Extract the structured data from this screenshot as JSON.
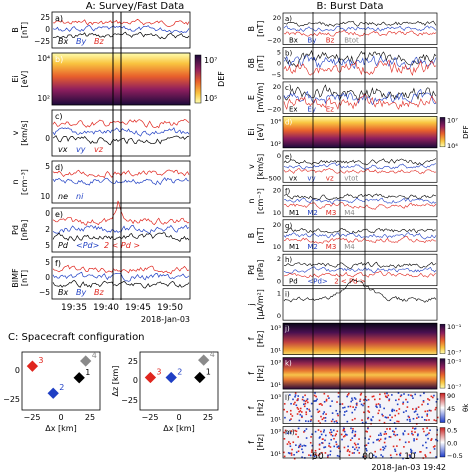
{
  "colors": {
    "black": "#000000",
    "blue": "#1f3fc4",
    "red": "#e0261e",
    "gray": "#8a8a8a",
    "purple": "#6a3d9a",
    "orange": "#f0a020"
  },
  "left": {
    "title": "A: Survey/Fast Data",
    "panels": [
      {
        "id": "a",
        "label": "a)",
        "ylabel": "B\n[nT]",
        "ticks": [
          "25",
          "0",
          "−25"
        ],
        "legend": [
          "Bx",
          "By",
          "Bz"
        ]
      },
      {
        "id": "b",
        "label": "b)",
        "ylabel": "Ei\n[eV]",
        "ticks": [
          "10⁴",
          "10²"
        ],
        "colorbar": {
          "ticks": [
            "10⁷",
            "10⁵"
          ],
          "label": "DEF"
        }
      },
      {
        "id": "c",
        "label": "c)",
        "ylabel": "v\n[km/s]",
        "ticks": [
          "0"
        ],
        "legend": [
          "vx",
          "vy",
          "vz"
        ]
      },
      {
        "id": "d",
        "label": "d)",
        "ylabel": "n\n[cm⁻³]",
        "ticks": [
          "5",
          "10"
        ],
        "legend": [
          "ne",
          "ni"
        ]
      },
      {
        "id": "e",
        "label": "e)",
        "ylabel": "Pd\n[nPa]",
        "ticks": [
          "0",
          "2",
          "5"
        ],
        "legend": [
          "Pd",
          "<Pd>",
          "2 < Pd >"
        ]
      },
      {
        "id": "f",
        "label": "f)",
        "ylabel": "BIMF\n[nT]",
        "ticks": [
          "5",
          "0",
          "−5"
        ],
        "legend": [
          "Bx",
          "By",
          "Bz"
        ]
      }
    ],
    "x_ticks": [
      "19:35",
      "19:40",
      "19:45",
      "19:50"
    ],
    "date": "2018-Jan-03"
  },
  "right": {
    "title": "B: Burst Data",
    "panels": [
      {
        "id": "a",
        "label": "a)",
        "ylabel": "B\n[nT]",
        "ticks": [
          "20",
          "0",
          "−20"
        ],
        "legend": [
          "Bx",
          "By",
          "Bz",
          "Btot"
        ]
      },
      {
        "id": "b",
        "label": "b)",
        "ylabel": "δB\n[nT]",
        "ticks": [
          "5",
          "0",
          "−5"
        ]
      },
      {
        "id": "c",
        "label": "c)",
        "ylabel": "E\n[mV/m]",
        "ticks": [
          "20",
          "0",
          "−20"
        ],
        "legend": [
          "Ex",
          "Ey",
          "Ez"
        ]
      },
      {
        "id": "d",
        "label": "d)",
        "ylabel": "Ei\n[eV]",
        "ticks": [
          "10⁴",
          "10²"
        ],
        "colorbar": {
          "ticks": [
            "10⁷",
            "10⁴"
          ],
          "label": "DFF"
        }
      },
      {
        "id": "e",
        "label": "e)",
        "ylabel": "v\n[km/s]",
        "ticks": [
          "0",
          "−500"
        ],
        "legend": [
          "vx",
          "vy",
          "vz",
          "vtot"
        ]
      },
      {
        "id": "f",
        "label": "f)",
        "ylabel": "n\n[cm⁻³]",
        "ticks": [
          "20",
          "10"
        ],
        "legend": [
          "M1",
          "M2",
          "M3",
          "M4"
        ]
      },
      {
        "id": "g",
        "label": "g)",
        "ylabel": "B\n[nT]",
        "ticks": [
          "20",
          "10"
        ],
        "legend": [
          "M1",
          "M2",
          "M3",
          "M4"
        ]
      },
      {
        "id": "h",
        "label": "h)",
        "ylabel": "Pd\n[nPa]",
        "ticks": [
          "2",
          "0"
        ],
        "legend": [
          "Pd",
          "<Pd>",
          "2 < Pd >"
        ]
      },
      {
        "id": "i",
        "label": "i)",
        "ylabel": "j\n[μA/m²]",
        "ticks": [
          "1",
          "0"
        ]
      },
      {
        "id": "j",
        "label": "j)",
        "ylabel": "f\n[Hz]",
        "ticks": [
          "10³",
          "10¹"
        ],
        "colorbar": {
          "ticks": [
            "10⁻¹",
            "10⁻⁷"
          ],
          "label": ""
        }
      },
      {
        "id": "k",
        "label": "k)",
        "ylabel": "f\n[Hz]",
        "ticks": [
          "10³",
          "10¹"
        ],
        "colorbar": {
          "ticks": [
            "10⁻¹",
            "10⁻⁷"
          ],
          "label": ""
        }
      },
      {
        "id": "l",
        "label": "l)",
        "ylabel": "f\n[Hz]",
        "ticks": [
          "10³",
          "10¹"
        ],
        "colorbar": {
          "ticks": [
            "90",
            "45",
            "0"
          ],
          "label": "θk"
        }
      },
      {
        "id": "m",
        "label": "m)",
        "ylabel": "f\n[Hz]",
        "ticks": [
          "10³",
          "10¹"
        ],
        "colorbar": {
          "ticks": [
            "0.5",
            "0.0",
            "−0.5"
          ],
          "label": ""
        }
      }
    ],
    "x_ticks": [
      "50",
      "00",
      "10"
    ],
    "date": "2018-Jan-03 19:42"
  },
  "config": {
    "title": "C: Spacecraft configuration",
    "left_plot": {
      "xlabel": "Δx [km]",
      "ylabel": "",
      "xticks": [
        "−25",
        "0",
        "25"
      ],
      "yticks": [
        "0",
        "−25"
      ]
    },
    "right_plot": {
      "xlabel": "Δx [km]",
      "ylabel": "Δz [km]",
      "xticks": [
        "−25",
        "0",
        "25"
      ],
      "yticks": [
        "25",
        "0",
        "−25"
      ]
    }
  },
  "chart_data": [
    {
      "type": "scatter",
      "title": "C: Spacecraft configuration",
      "xlabel": "Δx [km]",
      "ylabel": "",
      "xlim": [
        -30,
        30
      ],
      "ylim": [
        -30,
        15
      ],
      "series": [
        {
          "name": "1",
          "x": [
            14
          ],
          "y": [
            -5
          ],
          "color": "#000000"
        },
        {
          "name": "2",
          "x": [
            -6
          ],
          "y": [
            -17
          ],
          "color": "#1f3fc4"
        },
        {
          "name": "3",
          "x": [
            -22
          ],
          "y": [
            4
          ],
          "color": "#e0261e"
        },
        {
          "name": "4",
          "x": [
            19
          ],
          "y": [
            8
          ],
          "color": "#8a8a8a"
        }
      ]
    },
    {
      "type": "scatter",
      "title": "",
      "xlabel": "Δx [km]",
      "ylabel": "Δz [km]",
      "xlim": [
        -30,
        30
      ],
      "ylim": [
        -30,
        20
      ],
      "series": [
        {
          "name": "1",
          "x": [
            16
          ],
          "y": [
            -2
          ],
          "color": "#000000"
        },
        {
          "name": "2",
          "x": [
            -6
          ],
          "y": [
            -2
          ],
          "color": "#1f3fc4"
        },
        {
          "name": "3",
          "x": [
            -22
          ],
          "y": [
            -2
          ],
          "color": "#e0261e"
        },
        {
          "name": "4",
          "x": [
            19
          ],
          "y": [
            13
          ],
          "color": "#8a8a8a"
        }
      ]
    }
  ]
}
